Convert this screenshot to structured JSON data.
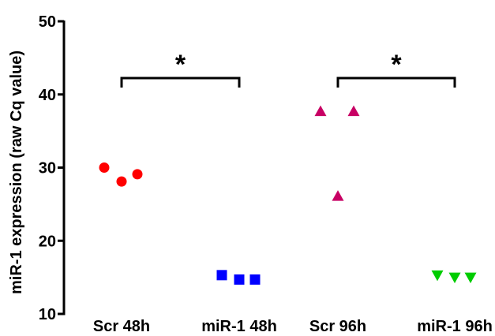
{
  "chart_data": {
    "type": "scatter",
    "title": "",
    "xlabel": "",
    "ylabel": "miR-1 expression (raw Cq value)",
    "ylim": [
      10,
      50
    ],
    "yticks": [
      "10",
      "20",
      "30",
      "40",
      "50"
    ],
    "categories": [
      "Scr 48h",
      "miR-1 48h",
      "Scr 96h",
      "miR-1 96h"
    ],
    "grid": false,
    "legend": "none",
    "series": [
      {
        "category": "Scr 48h",
        "marker": "circle",
        "color": "#ff0000",
        "values": [
          30.0,
          28.1,
          29.1
        ]
      },
      {
        "category": "miR-1 48h",
        "marker": "square",
        "color": "#0000ff",
        "values": [
          15.3,
          14.7,
          14.7
        ]
      },
      {
        "category": "Scr 96h",
        "marker": "triangle-up",
        "color": "#c80064",
        "values": [
          37.7,
          26.1,
          37.7
        ]
      },
      {
        "category": "miR-1 96h",
        "marker": "triangle-down",
        "color": "#00cc00",
        "values": [
          15.3,
          15.0,
          15.0
        ]
      }
    ],
    "annotations": [
      {
        "from": "Scr 48h",
        "to": "miR-1 48h",
        "text": "*"
      },
      {
        "from": "Scr 96h",
        "to": "miR-1 96h",
        "text": "*"
      }
    ]
  }
}
